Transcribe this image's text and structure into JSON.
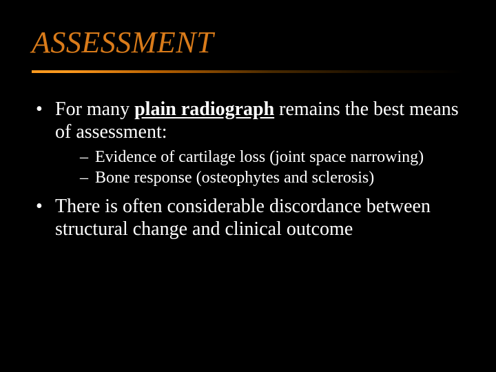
{
  "slide": {
    "background_color": "#000000",
    "title": {
      "text": "ASSESSMENT",
      "color": "#d97b1a",
      "font_style": "italic",
      "font_size_pt": 33,
      "underline_gradient": [
        "#ff9a1f",
        "#b35e00",
        "#4a2a00",
        "#1a0f00",
        "#000000"
      ]
    },
    "body": {
      "text_color": "#ffffff",
      "level1_font_size_pt": 21,
      "level2_font_size_pt": 18,
      "bullet1_pre": "For many ",
      "bullet1_emph": "plain radiograph",
      "bullet1_post": " remains the best means of assessment:",
      "sub1": "Evidence of cartilage loss (joint space narrowing)",
      "sub2": "Bone response (osteophytes and sclerosis)",
      "bullet2": "There is often considerable discordance between structural change and clinical outcome"
    }
  }
}
